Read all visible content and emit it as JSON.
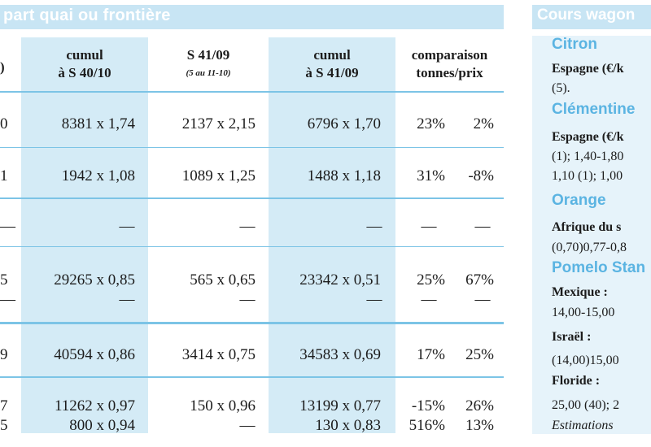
{
  "left_header": {
    "title": "part quai ou frontière"
  },
  "columns": [
    {
      "line1": ")",
      "line2": ""
    },
    {
      "line1": "cumul",
      "line2": "à S 40/10"
    },
    {
      "line1": "S 41/09",
      "line2": "(5 au 11-10)"
    },
    {
      "line1": "cumul",
      "line2": "à S 41/09"
    },
    {
      "line1": "comparaison",
      "line2": "tonnes/prix"
    }
  ],
  "rows": [
    {
      "c0": "0",
      "c1": "8381 x 1,74",
      "c2": "2137 x 2,15",
      "c3": "6796 x 1,70",
      "pct_t": "23%",
      "pct_p": "2%"
    },
    {
      "c0": "1",
      "c1": "1942 x 1,08",
      "c2": "1089 x 1,25",
      "c3": "1488 x 1,18",
      "pct_t": "31%",
      "pct_p": "-8%"
    },
    {
      "c0": "—",
      "c1": "—",
      "c2": "—",
      "c3": "—",
      "pct_t": "—",
      "pct_p": "—"
    },
    {
      "c0": "5",
      "c1": "29265 x 0,85",
      "c2": "565 x 0,65",
      "c3": "23342 x 0,51",
      "pct_t": "25%",
      "pct_p": "67%"
    },
    {
      "c0": "—",
      "c1": "—",
      "c2": "—",
      "c3": "—",
      "pct_t": "—",
      "pct_p": "—"
    },
    {
      "c0": "9",
      "c1": "40594 x 0,86",
      "c2": "3414 x 0,75",
      "c3": "34583 x 0,69",
      "pct_t": "17%",
      "pct_p": "25%"
    },
    {
      "c0": "7",
      "c1": "11262 x 0,97",
      "c2": "150 x 0,96",
      "c3": "13199 x 0,77",
      "pct_t": "-15%",
      "pct_p": "26%"
    },
    {
      "c0": "5",
      "c1": "800 x 0,94",
      "c2": "—",
      "c3": "130 x 0,83",
      "pct_t": "516%",
      "pct_p": "13%"
    }
  ],
  "right_panel": {
    "title": "Cours wagon",
    "lines": [
      {
        "kind": "head",
        "text": "Citron"
      },
      {
        "kind": "bold",
        "text": "Espagne (€/k"
      },
      {
        "kind": "text",
        "text": "(5)."
      },
      {
        "kind": "head",
        "text": "Clémentine"
      },
      {
        "kind": "bold",
        "text": "Espagne (€/k"
      },
      {
        "kind": "text",
        "text": "(1); 1,40-1,80"
      },
      {
        "kind": "text",
        "text": "1,10 (1); 1,00"
      },
      {
        "kind": "head",
        "text": "Orange"
      },
      {
        "kind": "bold",
        "text": "Afrique du s"
      },
      {
        "kind": "text",
        "text": "(0,70)0,77-0,8"
      },
      {
        "kind": "head",
        "text": "Pomelo Stan"
      },
      {
        "kind": "bold",
        "text": "Mexique :"
      },
      {
        "kind": "text",
        "text": "14,00-15,00"
      },
      {
        "kind": "bold",
        "text": "Israël :"
      },
      {
        "kind": "text",
        "text": "(14,00)15,00"
      },
      {
        "kind": "bold",
        "text": "Floride :"
      },
      {
        "kind": "text",
        "text": "25,00 (40); 2"
      },
      {
        "kind": "ital",
        "text": "Estimations"
      }
    ]
  }
}
